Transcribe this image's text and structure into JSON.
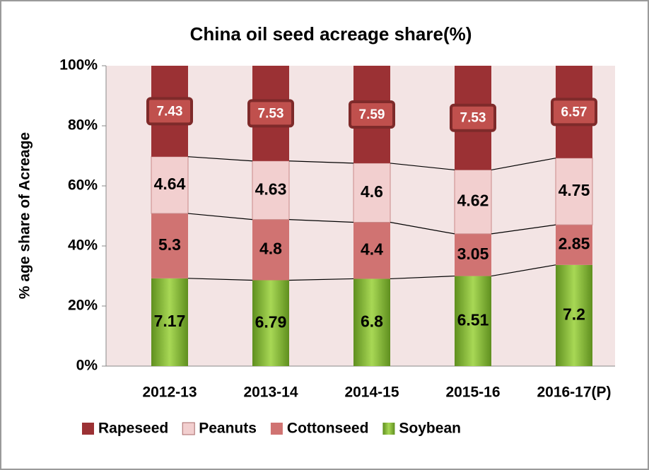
{
  "chart_data": {
    "type": "bar",
    "stacking": "percent",
    "title": "China oil seed acreage share(%)",
    "ylabel": "% age share of Acreage",
    "categories": [
      "2012-13",
      "2013-14",
      "2014-15",
      "2015-16",
      "2016-17(P)"
    ],
    "series": [
      {
        "name": "Rapeseed",
        "color": "#9b3134",
        "values": [
          7.43,
          7.53,
          7.59,
          7.53,
          6.57
        ]
      },
      {
        "name": "Peanuts",
        "color": "#f2cfcf",
        "values": [
          4.64,
          4.63,
          4.6,
          4.62,
          4.75
        ]
      },
      {
        "name": "Cottonseed",
        "color": "#d07372",
        "values": [
          5.3,
          4.8,
          4.4,
          3.05,
          2.85
        ]
      },
      {
        "name": "Soybean",
        "color": "#8cc43c",
        "values": [
          7.17,
          6.79,
          6.8,
          6.51,
          7.2
        ]
      }
    ],
    "ylim": [
      0,
      100
    ],
    "yticks": [
      {
        "value": 0,
        "label": "0%"
      },
      {
        "value": 20,
        "label": "20%"
      },
      {
        "value": 40,
        "label": "40%"
      },
      {
        "value": 60,
        "label": "60%"
      },
      {
        "value": 80,
        "label": "80%"
      },
      {
        "value": 100,
        "label": "100%"
      }
    ],
    "grid": false,
    "legend": "bottom"
  }
}
